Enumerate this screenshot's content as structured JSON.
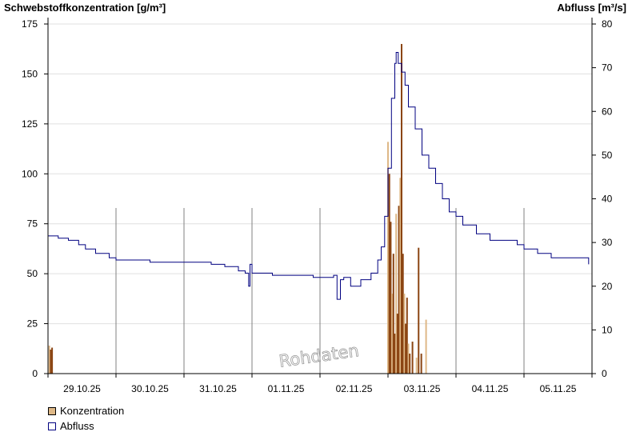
{
  "chart_data": {
    "type": "bar+line",
    "y_left_label": "Schwebstoffkonzentration [g/m³]",
    "y_right_label": "Abfluss [m³/s]",
    "y_left_ticks": [
      "0",
      "25",
      "50",
      "75",
      "100",
      "125",
      "150",
      "175"
    ],
    "y_right_ticks": [
      "0",
      "10",
      "20",
      "30",
      "40",
      "50",
      "60",
      "70",
      "80"
    ],
    "y_left_range": [
      0,
      175
    ],
    "y_right_range": [
      0,
      80
    ],
    "x_range": [
      0,
      8
    ],
    "x_tick_labels": [
      "29.10.25",
      "30.10.25",
      "31.10.25",
      "01.11.25",
      "02.11.25",
      "03.11.25",
      "04.11.25",
      "05.11.25"
    ],
    "watermark": "Rohdaten",
    "colors": {
      "konzentration_fill": "#deb887",
      "konzentration_dark": "#8b4513",
      "abfluss": "#000080",
      "grid": "#e0e0e0",
      "day_line": "#808080"
    },
    "series": [
      {
        "name": "Konzentration",
        "type": "bar",
        "points": [
          [
            0.02,
            14
          ],
          [
            0.04,
            12
          ],
          [
            0.06,
            13
          ],
          [
            5.0,
            116
          ],
          [
            5.02,
            100
          ],
          [
            5.04,
            76
          ],
          [
            5.06,
            40
          ],
          [
            5.08,
            60
          ],
          [
            5.1,
            20
          ],
          [
            5.12,
            80
          ],
          [
            5.14,
            30
          ],
          [
            5.16,
            84
          ],
          [
            5.18,
            98
          ],
          [
            5.2,
            165
          ],
          [
            5.22,
            60
          ],
          [
            5.24,
            40
          ],
          [
            5.26,
            25
          ],
          [
            5.28,
            38
          ],
          [
            5.3,
            15
          ],
          [
            5.32,
            10
          ],
          [
            5.36,
            16
          ],
          [
            5.42,
            8
          ],
          [
            5.45,
            63
          ],
          [
            5.49,
            10
          ],
          [
            5.56,
            27
          ]
        ]
      },
      {
        "name": "Abfluss",
        "type": "line",
        "points": [
          [
            0.0,
            31.5
          ],
          [
            0.15,
            31
          ],
          [
            0.3,
            30.5
          ],
          [
            0.45,
            29.5
          ],
          [
            0.55,
            28.5
          ],
          [
            0.7,
            27.5
          ],
          [
            0.9,
            26.5
          ],
          [
            1.0,
            26
          ],
          [
            1.2,
            26
          ],
          [
            1.5,
            25.5
          ],
          [
            2.0,
            25.5
          ],
          [
            2.2,
            25.5
          ],
          [
            2.4,
            25
          ],
          [
            2.6,
            24.5
          ],
          [
            2.8,
            23.5
          ],
          [
            2.9,
            23
          ],
          [
            2.95,
            20
          ],
          [
            2.97,
            25
          ],
          [
            3.0,
            23
          ],
          [
            3.3,
            22.5
          ],
          [
            3.6,
            22.5
          ],
          [
            3.9,
            22
          ],
          [
            4.1,
            22
          ],
          [
            4.2,
            22.5
          ],
          [
            4.25,
            17
          ],
          [
            4.3,
            21.5
          ],
          [
            4.35,
            22
          ],
          [
            4.45,
            20
          ],
          [
            4.6,
            21.5
          ],
          [
            4.75,
            23
          ],
          [
            4.85,
            26
          ],
          [
            4.9,
            29
          ],
          [
            4.95,
            36
          ],
          [
            5.0,
            47
          ],
          [
            5.05,
            63
          ],
          [
            5.1,
            71
          ],
          [
            5.12,
            73.5
          ],
          [
            5.15,
            71
          ],
          [
            5.2,
            69
          ],
          [
            5.25,
            66
          ],
          [
            5.3,
            61
          ],
          [
            5.4,
            56
          ],
          [
            5.5,
            50
          ],
          [
            5.6,
            47
          ],
          [
            5.7,
            43.5
          ],
          [
            5.8,
            40
          ],
          [
            5.9,
            37
          ],
          [
            6.0,
            36
          ],
          [
            6.1,
            34
          ],
          [
            6.3,
            32
          ],
          [
            6.5,
            30.5
          ],
          [
            6.7,
            30.5
          ],
          [
            6.9,
            29.5
          ],
          [
            7.0,
            28.5
          ],
          [
            7.2,
            27.5
          ],
          [
            7.4,
            26.5
          ],
          [
            7.6,
            26.5
          ],
          [
            7.8,
            26.5
          ],
          [
            7.95,
            25
          ]
        ]
      }
    ]
  }
}
